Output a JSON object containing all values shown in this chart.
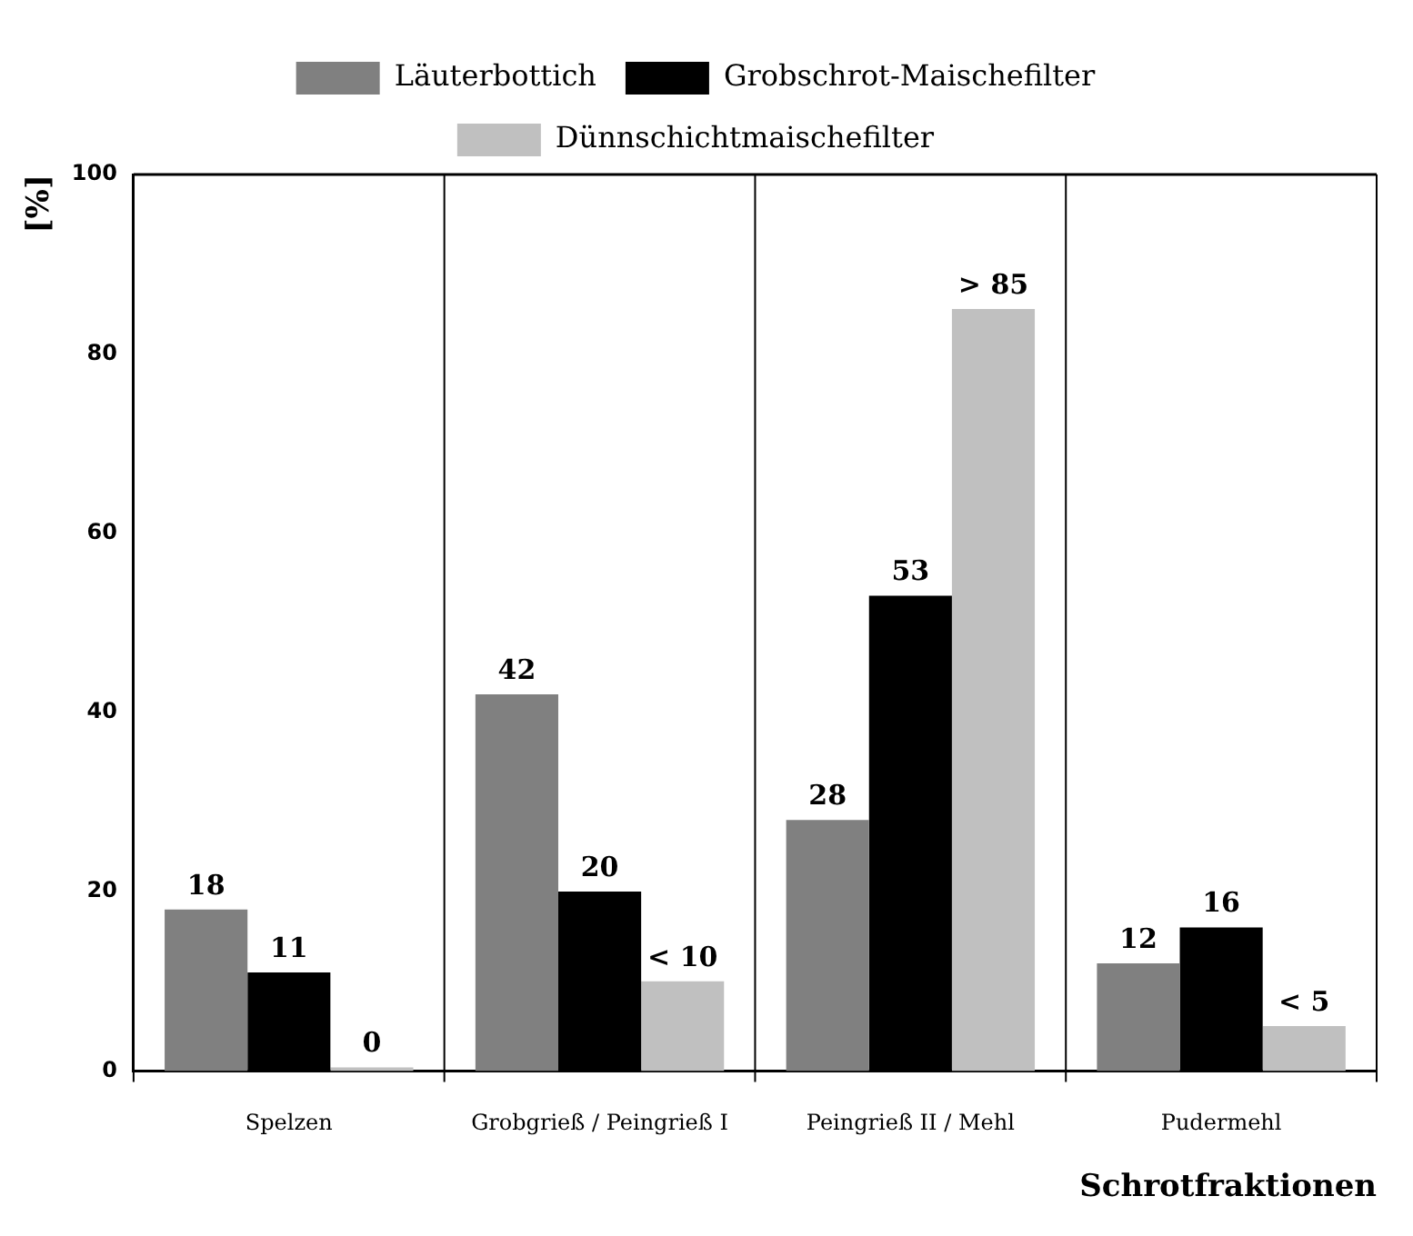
{
  "chart_data": {
    "type": "bar",
    "ylabel": "[%]",
    "xlabel": "Schrotfraktionen",
    "categories": [
      "Spelzen",
      "Grobgrieß / Peingrieß I",
      "Peingrieß II / Mehl",
      "Pudermehl"
    ],
    "series": [
      {
        "name": "Läuterbottich",
        "color": "#808080",
        "values": [
          18,
          42,
          28,
          12
        ],
        "value_labels": [
          "18",
          "42",
          "28",
          "12"
        ]
      },
      {
        "name": "Grobschrot-Maischefilter",
        "color": "#000000",
        "values": [
          11,
          20,
          53,
          16
        ],
        "value_labels": [
          "11",
          "20",
          "53",
          "16"
        ]
      },
      {
        "name": "Dünnschichtmaischefilter",
        "color": "#c0c0c0",
        "values": [
          0,
          10,
          85,
          5
        ],
        "value_labels": [
          "0",
          "< 10",
          "> 85",
          "< 5"
        ]
      }
    ],
    "ylim": [
      0,
      100
    ],
    "yticks": [
      0,
      20,
      40,
      60,
      80,
      100
    ],
    "grid": "x",
    "legend": "top"
  }
}
